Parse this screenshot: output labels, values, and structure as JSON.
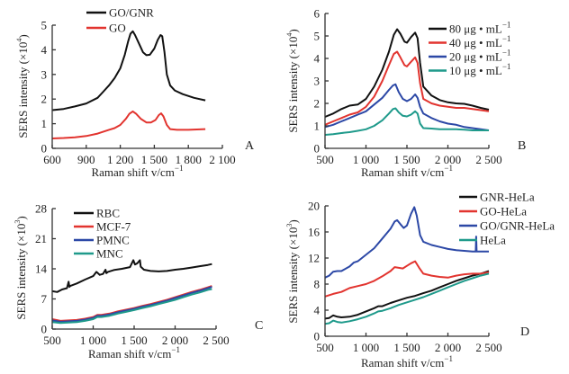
{
  "figure": {
    "panels": [
      "A",
      "B",
      "C",
      "D"
    ]
  },
  "colors": {
    "black": "#111111",
    "red": "#e2342f",
    "blue": "#2c48a6",
    "teal": "#1f9a8b"
  },
  "chart_data": [
    {
      "panel": "A",
      "type": "line",
      "xlabel": "Raman shift v/cm",
      "xlabel_sup": "−1",
      "ylabel": "SERS intensity (×10",
      "ylabel_sup": "4",
      "ylabel_end": ")",
      "xlim": [
        600,
        2100
      ],
      "ylim": [
        0,
        5
      ],
      "xticks": [
        600,
        900,
        1200,
        1500,
        1800,
        2100
      ],
      "xtick_labels": [
        "600",
        "900",
        "1 200",
        "1 500",
        "1 800",
        "2 100"
      ],
      "yticks": [
        0,
        1,
        2,
        3,
        4,
        5
      ],
      "ytick_labels": [
        "0",
        "1",
        "2",
        "3",
        "4",
        "5"
      ],
      "legend_position": "top-left",
      "series": [
        {
          "name": "GO/GNR",
          "color": "#111111",
          "x": [
            600,
            700,
            800,
            900,
            1000,
            1050,
            1100,
            1150,
            1200,
            1240,
            1270,
            1290,
            1310,
            1330,
            1360,
            1400,
            1430,
            1460,
            1500,
            1530,
            1555,
            1570,
            1590,
            1610,
            1640,
            1680,
            1750,
            1850,
            1950
          ],
          "y": [
            1.55,
            1.6,
            1.7,
            1.82,
            2.05,
            2.3,
            2.55,
            2.85,
            3.25,
            3.8,
            4.35,
            4.65,
            4.75,
            4.6,
            4.3,
            3.9,
            3.78,
            3.8,
            4.05,
            4.4,
            4.6,
            4.55,
            3.9,
            3.0,
            2.55,
            2.35,
            2.2,
            2.05,
            1.95
          ]
        },
        {
          "name": "GO",
          "color": "#e2342f",
          "x": [
            600,
            700,
            800,
            900,
            1000,
            1100,
            1150,
            1200,
            1250,
            1280,
            1310,
            1340,
            1380,
            1430,
            1470,
            1510,
            1540,
            1560,
            1580,
            1610,
            1640,
            1700,
            1800,
            1950
          ],
          "y": [
            0.4,
            0.42,
            0.45,
            0.5,
            0.6,
            0.75,
            0.82,
            0.95,
            1.2,
            1.4,
            1.5,
            1.4,
            1.2,
            1.05,
            1.05,
            1.15,
            1.35,
            1.42,
            1.3,
            0.95,
            0.78,
            0.75,
            0.75,
            0.78
          ]
        }
      ]
    },
    {
      "panel": "B",
      "type": "line",
      "xlabel": "Raman shift v/cm",
      "xlabel_sup": "−1",
      "ylabel": "SERS intensity (×10",
      "ylabel_sup": "4",
      "ylabel_end": ")",
      "xlim": [
        500,
        2500
      ],
      "ylim": [
        0,
        6
      ],
      "xticks": [
        500,
        1000,
        1500,
        2000,
        2500
      ],
      "xtick_labels": [
        "500",
        "1 000",
        "1 500",
        "2 000",
        "2 500"
      ],
      "yticks": [
        0,
        1,
        2,
        3,
        4,
        5,
        6
      ],
      "ytick_labels": [
        "0",
        "1",
        "2",
        "3",
        "4",
        "5",
        "6"
      ],
      "legend_position": "top-right",
      "series": [
        {
          "name": "80 μg • mL",
          "sup": "−1",
          "color": "#111111",
          "x": [
            500,
            600,
            700,
            800,
            900,
            1000,
            1100,
            1200,
            1280,
            1340,
            1380,
            1420,
            1470,
            1500,
            1550,
            1600,
            1630,
            1660,
            1700,
            1800,
            1900,
            2000,
            2100,
            2200,
            2300,
            2400,
            2500
          ],
          "y": [
            1.4,
            1.55,
            1.75,
            1.9,
            1.95,
            2.2,
            2.75,
            3.5,
            4.3,
            5.05,
            5.3,
            5.1,
            4.75,
            4.7,
            4.95,
            5.15,
            4.9,
            3.8,
            2.75,
            2.35,
            2.15,
            2.05,
            2.0,
            1.98,
            1.9,
            1.8,
            1.72
          ]
        },
        {
          "name": "40 μg • mL",
          "sup": "−1",
          "color": "#e2342f",
          "x": [
            500,
            600,
            700,
            800,
            900,
            1000,
            1100,
            1200,
            1280,
            1340,
            1380,
            1420,
            1470,
            1500,
            1550,
            1600,
            1630,
            1660,
            1700,
            1800,
            1900,
            2000,
            2100,
            2200,
            2300,
            2400,
            2500
          ],
          "y": [
            1.05,
            1.2,
            1.35,
            1.5,
            1.6,
            1.85,
            2.3,
            3.0,
            3.7,
            4.2,
            4.3,
            4.05,
            3.7,
            3.65,
            3.85,
            4.05,
            3.8,
            2.9,
            2.2,
            2.0,
            1.9,
            1.85,
            1.8,
            1.8,
            1.75,
            1.7,
            1.65
          ]
        },
        {
          "name": "20 μg • mL",
          "sup": "−1",
          "color": "#2c48a6",
          "x": [
            500,
            600,
            700,
            800,
            900,
            1000,
            1100,
            1200,
            1280,
            1330,
            1360,
            1400,
            1450,
            1500,
            1550,
            1600,
            1630,
            1660,
            1700,
            1800,
            1900,
            2000,
            2100,
            2200,
            2300,
            2400,
            2500
          ],
          "y": [
            0.95,
            1.05,
            1.2,
            1.35,
            1.5,
            1.65,
            1.95,
            2.25,
            2.6,
            2.8,
            2.85,
            2.5,
            2.2,
            2.1,
            2.2,
            2.4,
            2.25,
            1.85,
            1.55,
            1.35,
            1.2,
            1.1,
            1.05,
            0.95,
            0.9,
            0.85,
            0.8
          ]
        },
        {
          "name": "10 μg • mL",
          "sup": "−1",
          "color": "#1f9a8b",
          "x": [
            500,
            600,
            700,
            800,
            900,
            1000,
            1100,
            1200,
            1280,
            1330,
            1360,
            1400,
            1450,
            1500,
            1550,
            1600,
            1630,
            1660,
            1700,
            1800,
            1900,
            2000,
            2100,
            2200,
            2300,
            2400,
            2500
          ],
          "y": [
            0.6,
            0.63,
            0.68,
            0.72,
            0.78,
            0.85,
            1.0,
            1.25,
            1.55,
            1.75,
            1.78,
            1.6,
            1.45,
            1.42,
            1.5,
            1.65,
            1.55,
            1.1,
            0.9,
            0.88,
            0.85,
            0.85,
            0.85,
            0.83,
            0.8,
            0.8,
            0.8
          ]
        }
      ]
    },
    {
      "panel": "C",
      "type": "line",
      "xlabel": "Raman shift v/cm",
      "xlabel_sup": "−1",
      "ylabel": "SERS intensity (×10",
      "ylabel_sup": "3",
      "ylabel_end": ")",
      "xlim": [
        500,
        2500
      ],
      "ylim": [
        0,
        28
      ],
      "xticks": [
        500,
        1000,
        1500,
        2000,
        2500
      ],
      "xtick_labels": [
        "500",
        "1 000",
        "1 500",
        "2 000",
        "2 500"
      ],
      "yticks": [
        0,
        7,
        14,
        21,
        28
      ],
      "ytick_labels": [
        "0",
        "7",
        "14",
        "21",
        "28"
      ],
      "legend_position": "top-left",
      "series": [
        {
          "name": "RBC",
          "color": "#111111",
          "x": [
            500,
            560,
            620,
            680,
            700,
            710,
            720,
            800,
            900,
            1000,
            1040,
            1080,
            1120,
            1150,
            1160,
            1180,
            1250,
            1350,
            1450,
            1490,
            1510,
            1540,
            1570,
            1580,
            1620,
            1700,
            1800,
            1900,
            2000,
            2100,
            2200,
            2300,
            2400,
            2450
          ],
          "y": [
            8.8,
            8.6,
            9.2,
            9.5,
            11.0,
            9.8,
            10.0,
            10.6,
            11.5,
            12.3,
            13.3,
            12.6,
            12.8,
            13.8,
            13.0,
            13.3,
            13.7,
            14.0,
            14.4,
            16.0,
            15.0,
            15.3,
            16.0,
            14.5,
            13.8,
            13.5,
            13.4,
            13.5,
            13.8,
            14.0,
            14.3,
            14.6,
            14.9,
            15.1
          ]
        },
        {
          "name": "MCF-7",
          "color": "#e2342f",
          "x": [
            500,
            600,
            700,
            800,
            900,
            1000,
            1050,
            1100,
            1200,
            1300,
            1400,
            1500,
            1600,
            1700,
            1800,
            1900,
            2000,
            2100,
            2200,
            2300,
            2400,
            2450
          ],
          "y": [
            2.3,
            1.9,
            2.0,
            2.1,
            2.4,
            2.8,
            3.3,
            3.3,
            3.6,
            4.1,
            4.5,
            4.9,
            5.4,
            5.8,
            6.3,
            6.8,
            7.4,
            8.0,
            8.6,
            9.1,
            9.7,
            10.0
          ]
        },
        {
          "name": "PMNC",
          "color": "#2c48a6",
          "x": [
            500,
            600,
            700,
            800,
            900,
            1000,
            1050,
            1100,
            1200,
            1300,
            1400,
            1500,
            1600,
            1700,
            1800,
            1900,
            2000,
            2100,
            2200,
            2300,
            2400,
            2450
          ],
          "y": [
            2.0,
            1.7,
            1.8,
            1.9,
            2.2,
            2.6,
            3.1,
            3.1,
            3.4,
            3.9,
            4.3,
            4.7,
            5.2,
            5.6,
            6.1,
            6.6,
            7.2,
            7.8,
            8.4,
            8.9,
            9.5,
            9.8
          ]
        },
        {
          "name": "MNC",
          "color": "#1f9a8b",
          "x": [
            500,
            600,
            700,
            800,
            900,
            1000,
            1050,
            1100,
            1200,
            1300,
            1400,
            1500,
            1600,
            1700,
            1800,
            1900,
            2000,
            2100,
            2200,
            2300,
            2400,
            2450
          ],
          "y": [
            1.6,
            1.4,
            1.5,
            1.6,
            1.9,
            2.3,
            2.8,
            2.8,
            3.1,
            3.6,
            4.0,
            4.4,
            4.9,
            5.3,
            5.8,
            6.3,
            6.8,
            7.4,
            8.0,
            8.5,
            9.1,
            9.3
          ]
        }
      ]
    },
    {
      "panel": "D",
      "type": "line",
      "xlabel": "Raman shift v/cm",
      "xlabel_sup": "−1",
      "ylabel": "SERS intensity (×10",
      "ylabel_sup": "3",
      "ylabel_end": ")",
      "xlim": [
        500,
        2500
      ],
      "ylim": [
        0,
        20
      ],
      "xticks": [
        500,
        1000,
        1500,
        2000,
        2500
      ],
      "xtick_labels": [
        "500",
        "1 000",
        "1 500",
        "2 000",
        "2 500"
      ],
      "yticks": [
        0,
        4,
        8,
        12,
        16,
        20
      ],
      "ytick_labels": [
        "0",
        "4",
        "8",
        "12",
        "16",
        "20"
      ],
      "legend_position": "top-right",
      "series": [
        {
          "name": "GNR-HeLa",
          "color": "#111111",
          "x": [
            500,
            550,
            600,
            650,
            700,
            800,
            900,
            1000,
            1100,
            1150,
            1200,
            1300,
            1400,
            1500,
            1600,
            1700,
            1800,
            1900,
            2000,
            2100,
            2200,
            2300,
            2400,
            2500
          ],
          "y": [
            2.7,
            2.8,
            3.2,
            3.0,
            2.9,
            3.0,
            3.3,
            3.8,
            4.3,
            4.6,
            4.6,
            5.1,
            5.5,
            5.9,
            6.2,
            6.6,
            7.0,
            7.5,
            8.0,
            8.5,
            8.9,
            9.3,
            9.6,
            10.0
          ]
        },
        {
          "name": "GO-HeLa",
          "color": "#e2342f",
          "x": [
            500,
            600,
            700,
            800,
            900,
            1000,
            1100,
            1200,
            1300,
            1350,
            1400,
            1450,
            1500,
            1550,
            1600,
            1650,
            1700,
            1800,
            1900,
            2000,
            2100,
            2200,
            2300,
            2400,
            2500
          ],
          "y": [
            6.1,
            6.5,
            6.8,
            7.4,
            7.7,
            8.0,
            8.5,
            9.2,
            10.0,
            10.6,
            10.5,
            10.4,
            10.8,
            11.2,
            11.5,
            10.5,
            9.6,
            9.3,
            9.1,
            9.0,
            9.3,
            9.5,
            9.6,
            9.6,
            9.8
          ]
        },
        {
          "name": "GO/GNR-HeLa",
          "color": "#2c48a6",
          "x": [
            500,
            550,
            600,
            650,
            700,
            800,
            850,
            900,
            1000,
            1100,
            1200,
            1300,
            1350,
            1380,
            1420,
            1460,
            1500,
            1550,
            1590,
            1620,
            1660,
            1700,
            1800,
            1900,
            2000,
            2100,
            2200,
            2300,
            2340,
            2345,
            2350,
            2400,
            2500
          ],
          "y": [
            9.0,
            9.3,
            9.9,
            10.0,
            10.0,
            10.7,
            11.3,
            11.5,
            12.5,
            13.5,
            15.0,
            16.5,
            17.6,
            17.8,
            17.2,
            16.6,
            17.0,
            18.8,
            19.8,
            18.5,
            15.5,
            14.5,
            14.0,
            13.7,
            13.4,
            13.2,
            13.1,
            13.0,
            13.0,
            15.3,
            13.0,
            13.0,
            13.0
          ]
        },
        {
          "name": "HeLa",
          "color": "#1f9a8b",
          "x": [
            500,
            550,
            600,
            650,
            700,
            800,
            900,
            1000,
            1100,
            1150,
            1200,
            1300,
            1400,
            1500,
            1600,
            1700,
            1800,
            1900,
            2000,
            2100,
            2200,
            2300,
            2400,
            2500
          ],
          "y": [
            1.9,
            2.0,
            2.4,
            2.2,
            2.1,
            2.3,
            2.6,
            3.0,
            3.5,
            3.8,
            3.9,
            4.3,
            4.8,
            5.2,
            5.6,
            6.0,
            6.5,
            7.0,
            7.5,
            8.0,
            8.5,
            8.9,
            9.3,
            9.6
          ]
        }
      ]
    }
  ]
}
